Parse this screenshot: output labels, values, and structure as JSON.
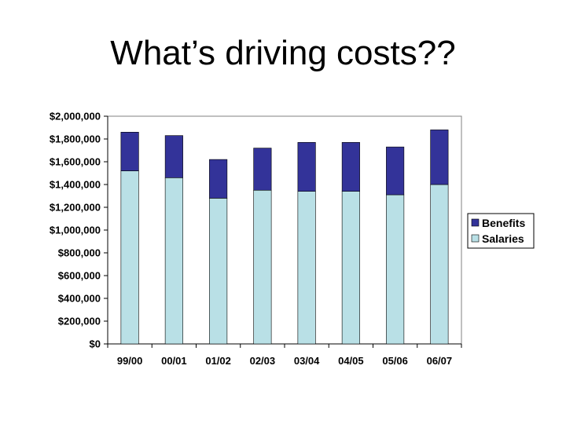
{
  "slide": {
    "title": "What’s driving costs??"
  },
  "colors": {
    "benefits": "#333399",
    "salaries": "#B9E0E6",
    "axis": "#000000",
    "background": "#ffffff"
  },
  "chart_data": {
    "type": "bar",
    "stacked": true,
    "categories": [
      "99/00",
      "00/01",
      "01/02",
      "02/03",
      "03/04",
      "04/05",
      "05/06",
      "06/07"
    ],
    "series": [
      {
        "name": "Salaries",
        "values": [
          1520000,
          1460000,
          1280000,
          1350000,
          1340000,
          1340000,
          1310000,
          1400000
        ]
      },
      {
        "name": "Benefits",
        "values": [
          340000,
          370000,
          340000,
          370000,
          430000,
          430000,
          420000,
          480000
        ]
      }
    ],
    "y_ticks": [
      "$0",
      "$200,000",
      "$400,000",
      "$600,000",
      "$800,000",
      "$1,000,000",
      "$1,200,000",
      "$1,400,000",
      "$1,600,000",
      "$1,800,000",
      "$2,000,000"
    ],
    "ylim": [
      0,
      2000000
    ],
    "legend": {
      "position": "right",
      "entries": [
        "Benefits",
        "Salaries"
      ]
    },
    "grid": false
  }
}
